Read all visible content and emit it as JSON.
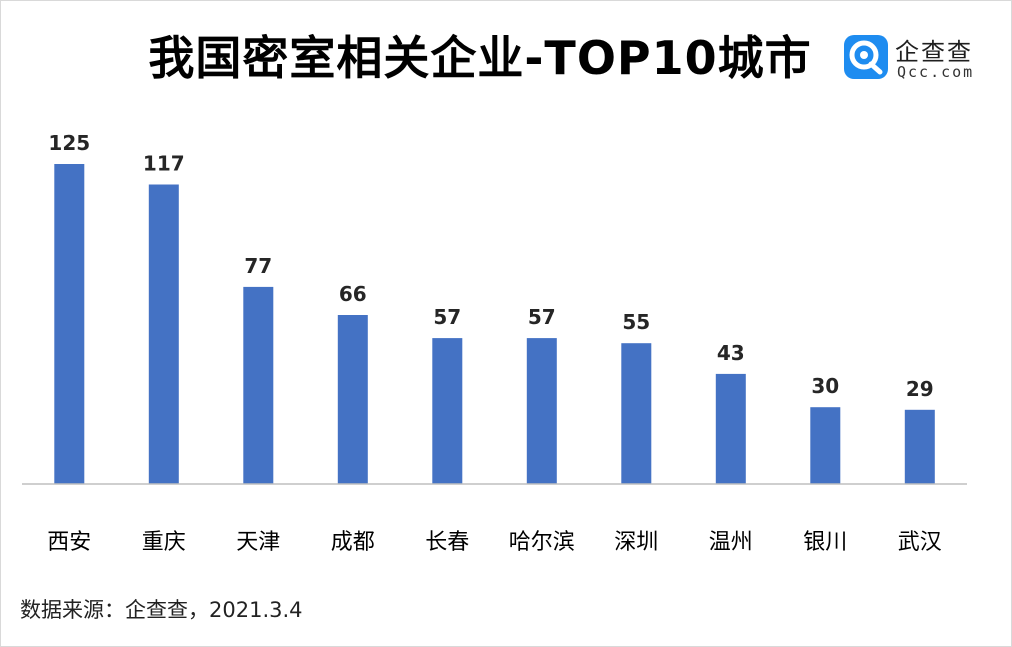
{
  "title": "我国密室相关企业-TOP10城市",
  "logo": {
    "name_cn": "企查查",
    "name_en": "Qcc.com",
    "icon": "qcc-logo-icon",
    "color_primary": "#1e8cf0",
    "color_dark": "#1565c0"
  },
  "source": "数据来源：企查查，2021.3.4",
  "chart_data": {
    "type": "bar",
    "title": "我国密室相关企业-TOP10城市",
    "xlabel": "",
    "ylabel": "",
    "categories": [
      "西安",
      "重庆",
      "天津",
      "成都",
      "长春",
      "哈尔滨",
      "深圳",
      "温州",
      "银川",
      "武汉"
    ],
    "values": [
      125,
      117,
      77,
      66,
      57,
      57,
      55,
      43,
      30,
      29
    ],
    "ylim": [
      0,
      125
    ],
    "data_labels": true,
    "grid": false,
    "legend": "none",
    "bar_color": "#4472c4",
    "axis_color": "#bfbfbf"
  }
}
